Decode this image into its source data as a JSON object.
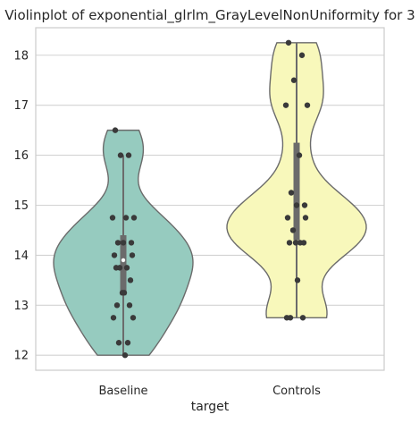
{
  "chart_data": {
    "type": "violin",
    "title": "Violinplot of exponential_glrlm_GrayLevelNonUniformity for 3",
    "xlabel": "target",
    "ylabel": "",
    "categories": [
      "Baseline",
      "Controls"
    ],
    "ylim": [
      11.7,
      18.55
    ],
    "yticks": [
      12,
      13,
      14,
      15,
      16,
      17,
      18
    ],
    "ytick_labels": [
      "12",
      "13",
      "14",
      "15",
      "16",
      "17",
      "18"
    ],
    "grid": "horizontal",
    "series": [
      {
        "category": "Baseline",
        "color": "#96cbbf",
        "min": 12.0,
        "max": 16.5,
        "quartiles": [
          13.2,
          13.9,
          14.4
        ],
        "whiskers": [
          12.0,
          16.0
        ],
        "points": [
          16.5,
          16.0,
          16.0,
          14.75,
          14.75,
          14.75,
          14.25,
          14.25,
          14.25,
          14.0,
          14.0,
          13.75,
          13.75,
          13.75,
          13.5,
          13.25,
          13.25,
          13.0,
          13.0,
          12.75,
          12.75,
          12.25,
          12.25,
          12.0
        ]
      },
      {
        "category": "Controls",
        "color": "#f8f8bb",
        "min": 12.75,
        "max": 18.25,
        "quartiles": [
          14.3,
          15.0,
          16.25
        ],
        "whiskers": [
          12.75,
          18.25
        ],
        "points": [
          18.25,
          18.0,
          17.5,
          17.0,
          17.0,
          16.0,
          15.25,
          15.0,
          15.0,
          14.75,
          14.75,
          14.5,
          14.25,
          14.25,
          14.25,
          14.25,
          13.5,
          12.75,
          12.75,
          12.75
        ]
      }
    ]
  }
}
